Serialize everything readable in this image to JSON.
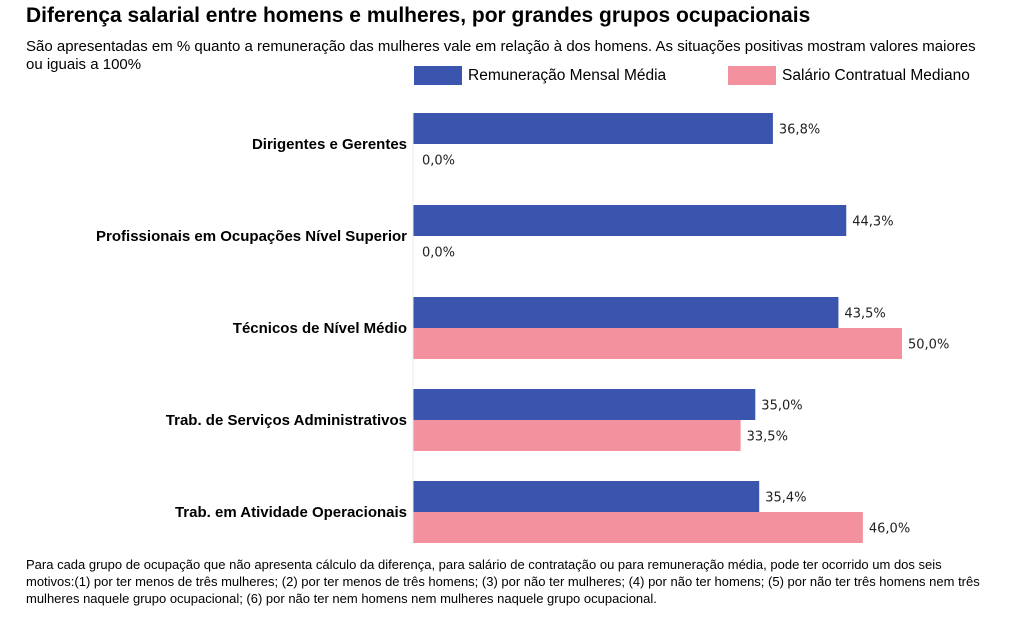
{
  "chart_data": {
    "type": "bar",
    "orientation": "horizontal",
    "title": "Diferença salarial entre homens e mulheres, por grandes grupos ocupacionais",
    "subtitle": "São apresentadas em % quanto a remuneração das mulheres vale em relação à dos homens. As situações positivas mostram valores maiores ou iguais a 100%",
    "categories": [
      "Dirigentes e Gerentes",
      "Profissionais em Ocupações Nível Superior",
      "Técnicos de Nível Médio",
      "Trab. de Serviços Administrativos",
      "Trab. em Atividade Operacionais"
    ],
    "series": [
      {
        "name": "Remuneração Mensal Média",
        "color": "#3B54AE",
        "values": [
          36.8,
          44.3,
          43.5,
          35.0,
          35.4
        ],
        "labels": [
          "36,8%",
          "44,3%",
          "43,5%",
          "35,0%",
          "35,4%"
        ]
      },
      {
        "name": "Salário Contratual Mediano",
        "color": "#F4919F",
        "values": [
          0.0,
          0.0,
          50.0,
          33.5,
          46.0
        ],
        "labels": [
          "0,0%",
          "0,0%",
          "50,0%",
          "33,5%",
          "46,0%"
        ]
      }
    ],
    "legend_position": "top-right",
    "grid": false,
    "xlim": [
      0,
      60
    ]
  },
  "footnote": "Para cada grupo de ocupação que não apresenta cálculo da diferença, para salário de contratação ou para remuneração média, pode ter ocorrido um dos seis motivos:(1) por ter menos de três mulheres; (2) por ter menos de três homens; (3) por não ter mulheres; (4) por não ter homens; (5) por não ter três homens nem três mulheres naquele grupo ocupacional; (6) por não ter nem homens nem mulheres naquele grupo ocupacional."
}
